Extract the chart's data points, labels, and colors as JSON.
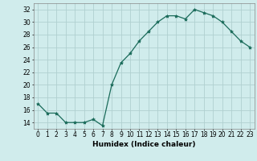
{
  "x": [
    0,
    1,
    2,
    3,
    4,
    5,
    6,
    7,
    8,
    9,
    10,
    11,
    12,
    13,
    14,
    15,
    16,
    17,
    18,
    19,
    20,
    21,
    22,
    23
  ],
  "y": [
    17,
    15.5,
    15.5,
    14,
    14,
    14,
    14.5,
    13.5,
    20,
    23.5,
    25,
    27,
    28.5,
    30,
    31,
    31,
    30.5,
    32,
    31.5,
    31,
    30,
    28.5,
    27,
    26
  ],
  "line_color": "#1a6b5a",
  "marker": "*",
  "marker_size": 3,
  "bg_color": "#d0ecec",
  "grid_color": "#b0d0d0",
  "xlabel": "Humidex (Indice chaleur)",
  "ylim": [
    13,
    33
  ],
  "xlim": [
    -0.5,
    23.5
  ],
  "yticks": [
    14,
    16,
    18,
    20,
    22,
    24,
    26,
    28,
    30,
    32
  ],
  "xticks": [
    0,
    1,
    2,
    3,
    4,
    5,
    6,
    7,
    8,
    9,
    10,
    11,
    12,
    13,
    14,
    15,
    16,
    17,
    18,
    19,
    20,
    21,
    22,
    23
  ],
  "tick_fontsize": 5.5,
  "xlabel_fontsize": 6.5
}
